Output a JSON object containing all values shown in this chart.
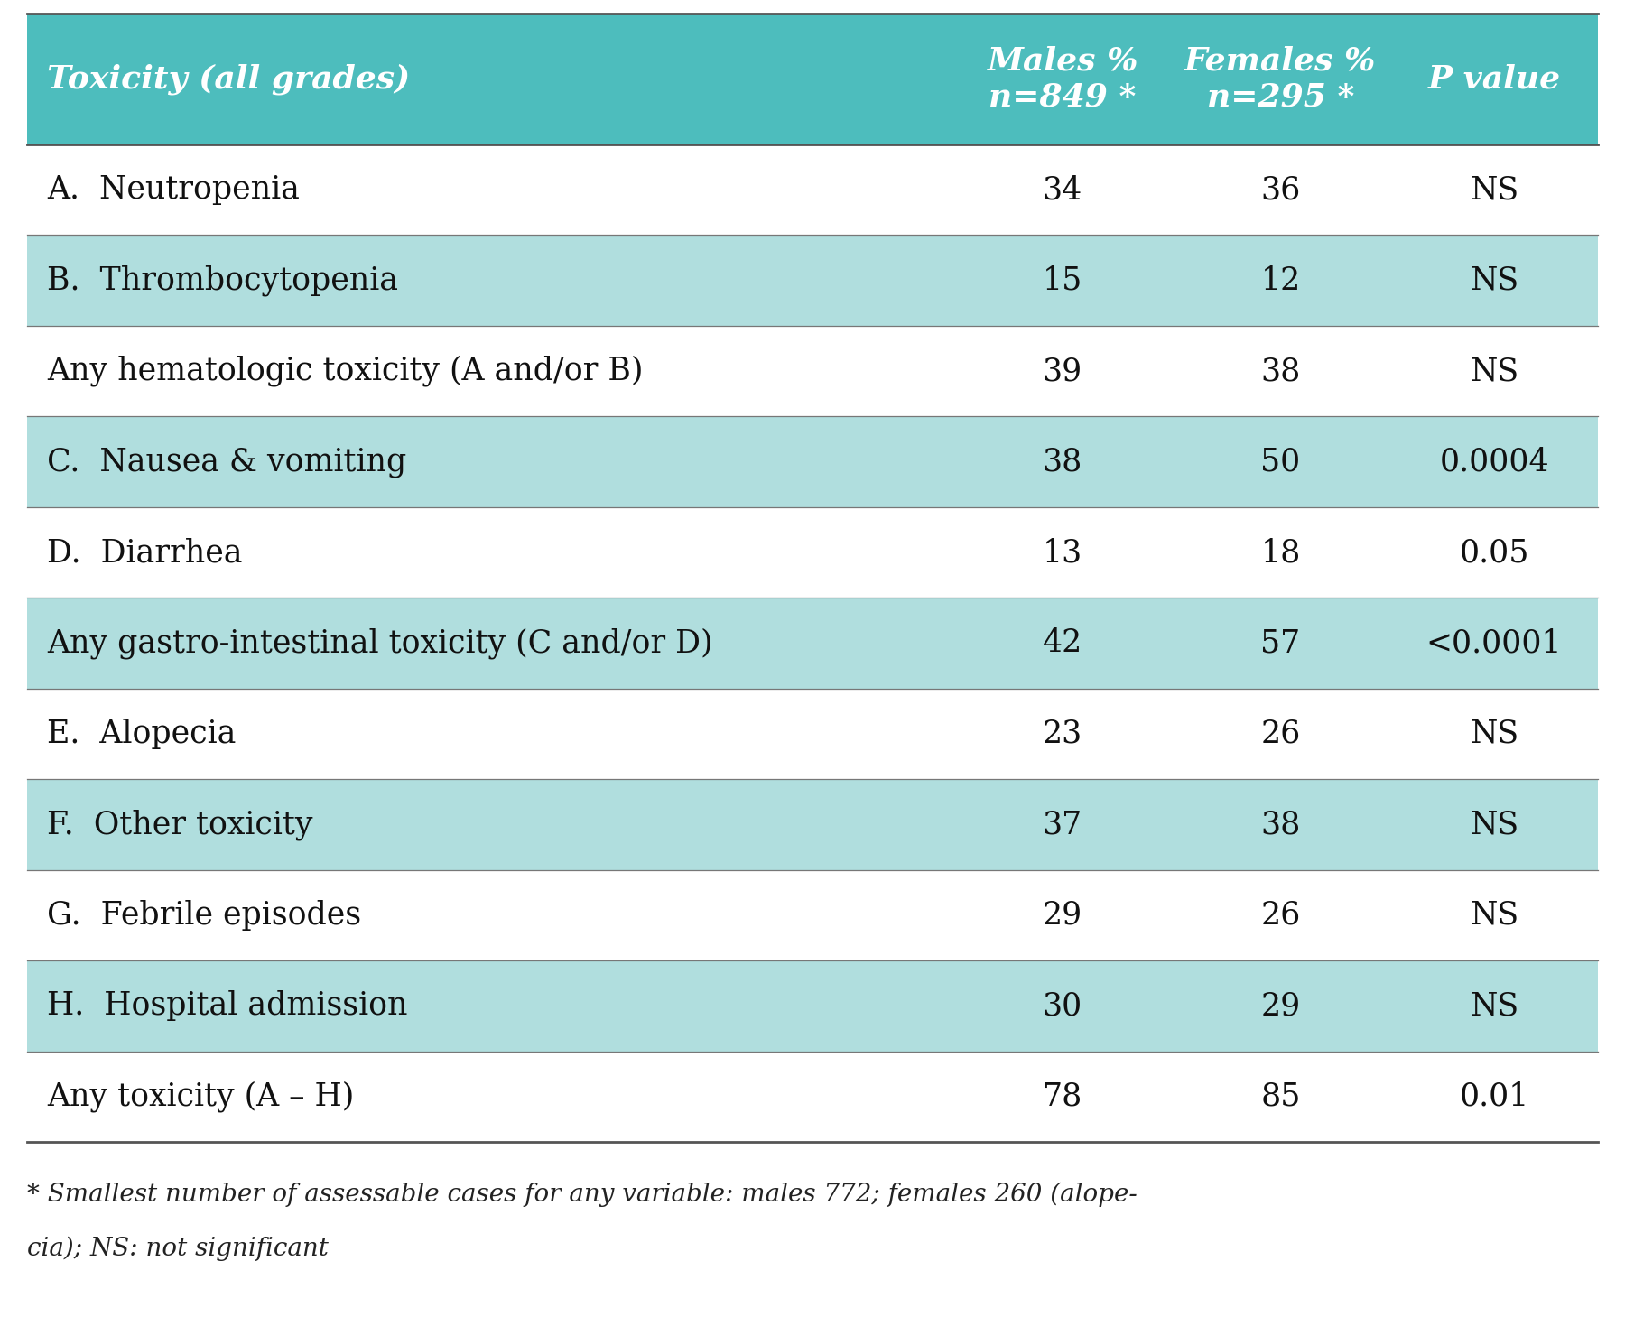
{
  "header_bg": "#4DBDBD",
  "header_text_color": "#FFFFFF",
  "row_bg_light": "#B0DEDE",
  "row_bg_white": "#FFFFFF",
  "text_color_dark": "#111111",
  "col1_header": "Toxicity (all grades)",
  "col2_header": "Males %\nn=849 *",
  "col3_header": "Females %\nn=295 *",
  "col4_header": "P value",
  "rows": [
    {
      "label": "A.  Neutropenia",
      "males": "34",
      "females": "36",
      "pval": "NS",
      "shaded": false
    },
    {
      "label": "B.  Thrombocytopenia",
      "males": "15",
      "females": "12",
      "pval": "NS",
      "shaded": true
    },
    {
      "label": "Any hematologic toxicity (A and/or B)",
      "males": "39",
      "females": "38",
      "pval": "NS",
      "shaded": false
    },
    {
      "label": "C.  Nausea & vomiting",
      "males": "38",
      "females": "50",
      "pval": "0.0004",
      "shaded": true
    },
    {
      "label": "D.  Diarrhea",
      "males": "13",
      "females": "18",
      "pval": "0.05",
      "shaded": false
    },
    {
      "label": "Any gastro-intestinal toxicity (C and/or D)",
      "males": "42",
      "females": "57",
      "pval": "<0.0001",
      "shaded": true
    },
    {
      "label": "E.  Alopecia",
      "males": "23",
      "females": "26",
      "pval": "NS",
      "shaded": false
    },
    {
      "label": "F.  Other toxicity",
      "males": "37",
      "females": "38",
      "pval": "NS",
      "shaded": true
    },
    {
      "label": "G.  Febrile episodes",
      "males": "29",
      "females": "26",
      "pval": "NS",
      "shaded": false
    },
    {
      "label": "H.  Hospital admission",
      "males": "30",
      "females": "29",
      "pval": "NS",
      "shaded": true
    },
    {
      "label": "Any toxicity (A – H)",
      "males": "78",
      "females": "85",
      "pval": "0.01",
      "shaded": false
    }
  ],
  "footnote_line1": "* Smallest number of assessable cases for any variable: males 772; females 260 (alope-",
  "footnote_line2": "cia); NS: not significant",
  "header_font_size": 26,
  "body_font_size": 25,
  "footnote_font_size": 20,
  "fig_width": 18.0,
  "fig_height": 14.59,
  "dpi": 100
}
